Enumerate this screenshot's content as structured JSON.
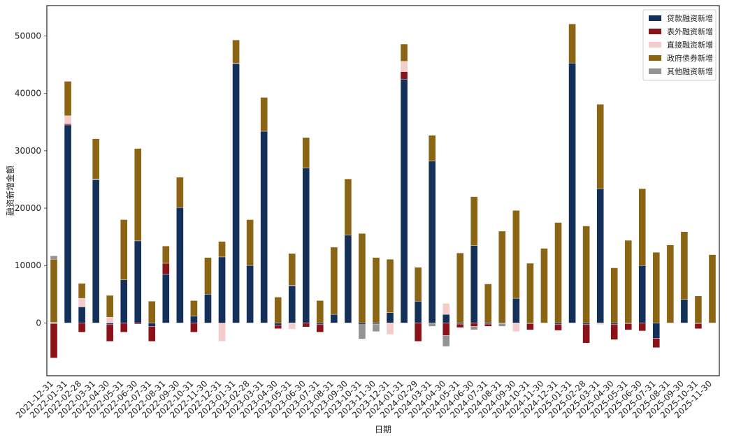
{
  "chart_data": {
    "type": "bar",
    "stacked": true,
    "xlabel": "日期",
    "ylabel": "融资新增金额",
    "ylim": [
      -9200,
      55300
    ],
    "yticks": [
      0,
      10000,
      20000,
      30000,
      40000,
      50000
    ],
    "grid": false,
    "legend_position": "top-right",
    "categories": [
      "2021-12-31",
      "2022-01-31",
      "2022-02-28",
      "2022-03-31",
      "2022-04-30",
      "2022-05-31",
      "2022-06-30",
      "2022-07-31",
      "2022-08-31",
      "2022-09-30",
      "2022-10-31",
      "2022-11-30",
      "2022-12-31",
      "2023-01-31",
      "2023-02-28",
      "2023-03-31",
      "2023-04-30",
      "2023-05-31",
      "2023-06-30",
      "2023-07-31",
      "2023-08-31",
      "2023-09-30",
      "2023-10-31",
      "2023-11-30",
      "2023-12-31",
      "2024-01-31",
      "2024-02-29",
      "2024-03-31",
      "2024-04-30",
      "2024-05-31",
      "2024-06-30",
      "2024-07-31",
      "2024-08-31",
      "2024-09-30",
      "2024-10-31",
      "2024-11-30",
      "2024-12-31",
      "2025-01-31",
      "2025-02-28",
      "2025-03-31",
      "2025-04-30",
      "2025-05-31",
      "2025-06-30",
      "2025-07-31",
      "2025-08-31",
      "2025-09-30",
      "2025-10-31",
      "2025-11-30"
    ],
    "series": [
      {
        "name": "贷款融资新增",
        "color": "#12305a",
        "values": [
          -100,
          34500,
          2800,
          25000,
          -300,
          7500,
          14300,
          -600,
          8500,
          20100,
          1200,
          5000,
          11500,
          45200,
          10000,
          33400,
          -400,
          6500,
          27000,
          -300,
          1500,
          15300,
          -300,
          -200,
          1800,
          42500,
          3800,
          28200,
          1500,
          -200,
          13500,
          -200,
          -100,
          4300,
          -100,
          0,
          -300,
          45300,
          -300,
          23400,
          -300,
          -100,
          10000,
          -2700,
          0,
          4100,
          -100,
          0
        ]
      },
      {
        "name": "表外融资新增",
        "color": "#8b1218",
        "values": [
          -6000,
          200,
          -1600,
          0,
          -2900,
          -1600,
          -200,
          -2600,
          1900,
          0,
          -1600,
          0,
          -100,
          100,
          0,
          0,
          -600,
          100,
          -700,
          -1300,
          0,
          0,
          0,
          0,
          0,
          1300,
          -3200,
          0,
          -2200,
          -600,
          -600,
          -400,
          0,
          0,
          -1100,
          0,
          -1000,
          0,
          -3200,
          0,
          -2600,
          -1100,
          -1400,
          -1600,
          0,
          0,
          -900,
          0
        ]
      },
      {
        "name": "直接融资新增",
        "color": "#f5cccc",
        "values": [
          100,
          1400,
          1500,
          100,
          1000,
          0,
          0,
          0,
          0,
          0,
          0,
          0,
          -3100,
          0,
          0,
          0,
          0,
          -1100,
          0,
          0,
          0,
          0,
          0,
          0,
          -2000,
          1800,
          0,
          0,
          1900,
          0,
          0,
          0,
          0,
          -1500,
          0,
          0,
          0,
          0,
          0,
          -300,
          0,
          0,
          0,
          0,
          0,
          0,
          0,
          0
        ]
      },
      {
        "name": "政府债券新增",
        "color": "#8b6414",
        "values": [
          11000,
          6000,
          2600,
          7000,
          3800,
          10500,
          16100,
          3800,
          3000,
          5300,
          2700,
          6400,
          2700,
          4000,
          8000,
          5900,
          4500,
          5500,
          5300,
          3900,
          11700,
          9800,
          15600,
          11400,
          9300,
          3000,
          5900,
          4500,
          0,
          12200,
          8500,
          6800,
          16000,
          15300,
          10400,
          13000,
          17500,
          6800,
          16900,
          14700,
          9600,
          14400,
          13400,
          12300,
          13600,
          11800,
          4700,
          11900
        ]
      },
      {
        "name": "其他融资新增",
        "color": "#939393",
        "values": [
          600,
          0,
          0,
          0,
          0,
          0,
          0,
          0,
          0,
          0,
          0,
          0,
          0,
          0,
          0,
          0,
          0,
          0,
          0,
          0,
          0,
          0,
          -2500,
          -1300,
          0,
          0,
          0,
          -600,
          -1900,
          0,
          -600,
          0,
          -500,
          0,
          0,
          0,
          0,
          0,
          0,
          0,
          0,
          0,
          0,
          0,
          0,
          0,
          0,
          0
        ]
      }
    ]
  }
}
